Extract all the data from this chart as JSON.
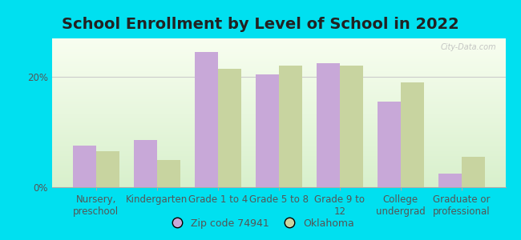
{
  "title": "School Enrollment by Level of School in 2022",
  "categories": [
    "Nursery,\npreschool",
    "Kindergarten",
    "Grade 1 to 4",
    "Grade 5 to 8",
    "Grade 9 to\n12",
    "College\nundergrad",
    "Graduate or\nprofessional"
  ],
  "zipcode_values": [
    7.5,
    8.5,
    24.5,
    20.5,
    22.5,
    15.5,
    2.5
  ],
  "oklahoma_values": [
    6.5,
    5.0,
    21.5,
    22.0,
    22.0,
    19.0,
    5.5
  ],
  "zipcode_color": "#c8a8d8",
  "oklahoma_color": "#c8d4a0",
  "background_outer": "#00e0f0",
  "ylim": [
    0,
    27
  ],
  "yticks": [
    0,
    20
  ],
  "ytick_labels": [
    "0%",
    "20%"
  ],
  "legend_zip_label": "Zip code 74941",
  "legend_ok_label": "Oklahoma",
  "bar_width": 0.38,
  "title_fontsize": 14,
  "tick_fontsize": 8.5,
  "legend_fontsize": 9,
  "title_color": "#222222",
  "tick_color": "#555555",
  "watermark": "City-Data.com"
}
